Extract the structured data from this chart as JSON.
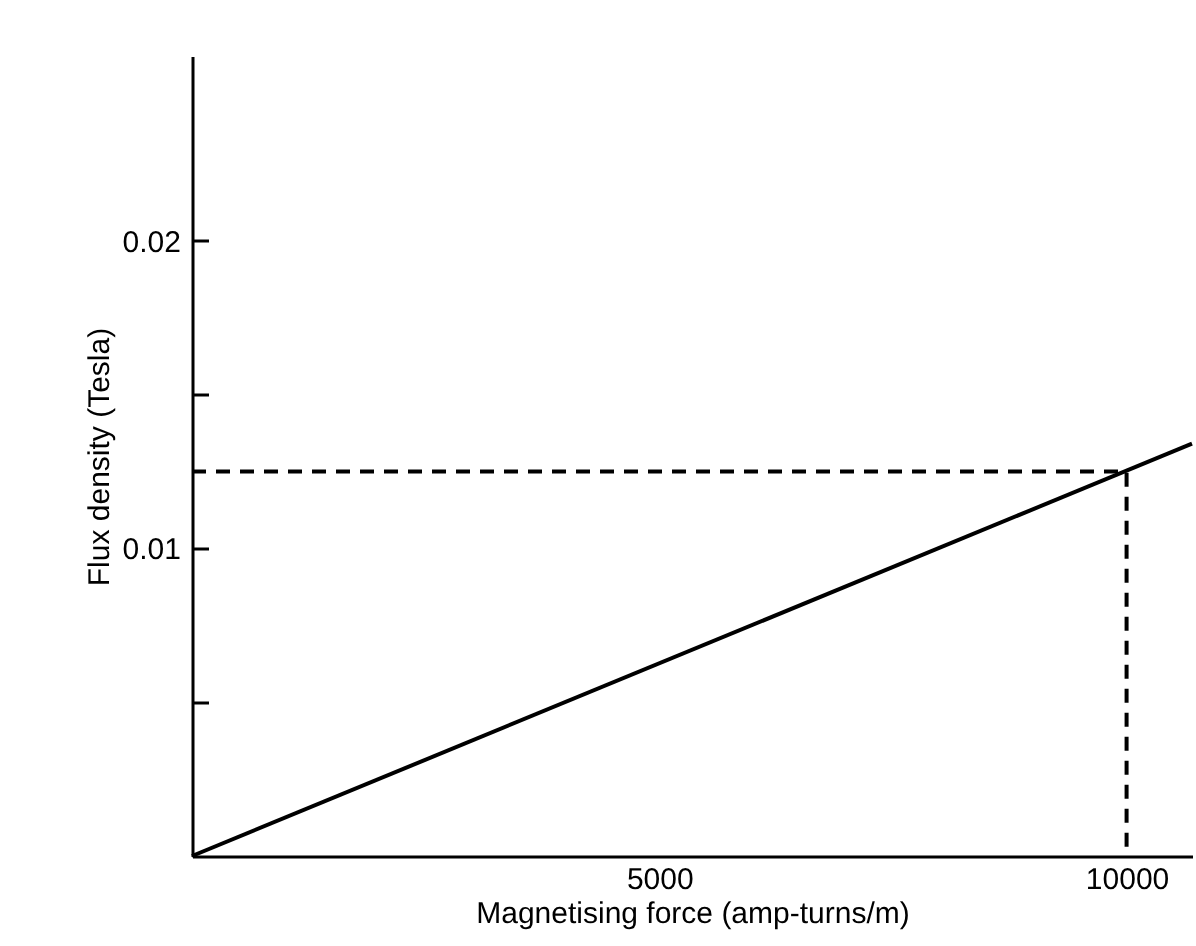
{
  "chart_data": {
    "type": "line",
    "xlabel": "Magnetising force (amp-turns/m)",
    "ylabel": "Flux density (Tesla)",
    "xlim": [
      0,
      10700
    ],
    "xticks": [
      5000,
      10000
    ],
    "ylim": [
      0,
      0.026
    ],
    "yticks": [
      {
        "value": 0.005,
        "label": null
      },
      0.01,
      {
        "value": 0.015,
        "label": null
      },
      0.02
    ],
    "grid": false,
    "marker": "none",
    "series": [
      {
        "x": [
          0,
          10700
        ],
        "values": [
          0,
          0.0134
        ],
        "color": "#000000",
        "line_style": "solid"
      },
      {
        "x": [
          0,
          10000,
          10000
        ],
        "values": [
          0.0125,
          0.0125,
          0
        ],
        "color": "#000000",
        "line_style": "dashed"
      }
    ]
  }
}
